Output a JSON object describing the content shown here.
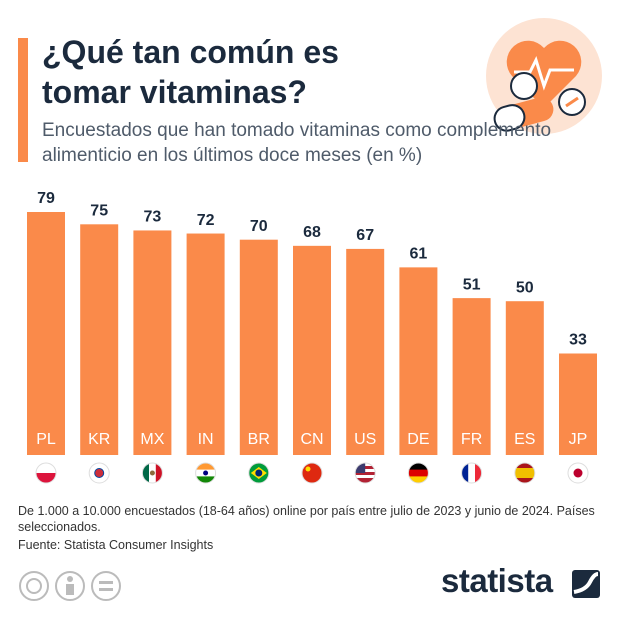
{
  "chart_data": {
    "type": "bar",
    "title": "¿Qué tan común es tomar vitaminas?",
    "subtitle": "Encuestados que han tomado vitaminas como complemento alimenticio en los últimos doce meses (en %)",
    "categories": [
      "PL",
      "KR",
      "MX",
      "IN",
      "BR",
      "CN",
      "US",
      "DE",
      "FR",
      "ES",
      "JP"
    ],
    "values": [
      79,
      75,
      73,
      72,
      70,
      68,
      67,
      61,
      51,
      50,
      33
    ],
    "color": "#fa8a4a",
    "note": "De 1.000 a 10.000 encuestados (18-64 años) online por país entre julio de 2023 y junio de 2024. Países seleccionados.",
    "source": "Fuente: Statista Consumer Insights",
    "brand": "statista"
  }
}
